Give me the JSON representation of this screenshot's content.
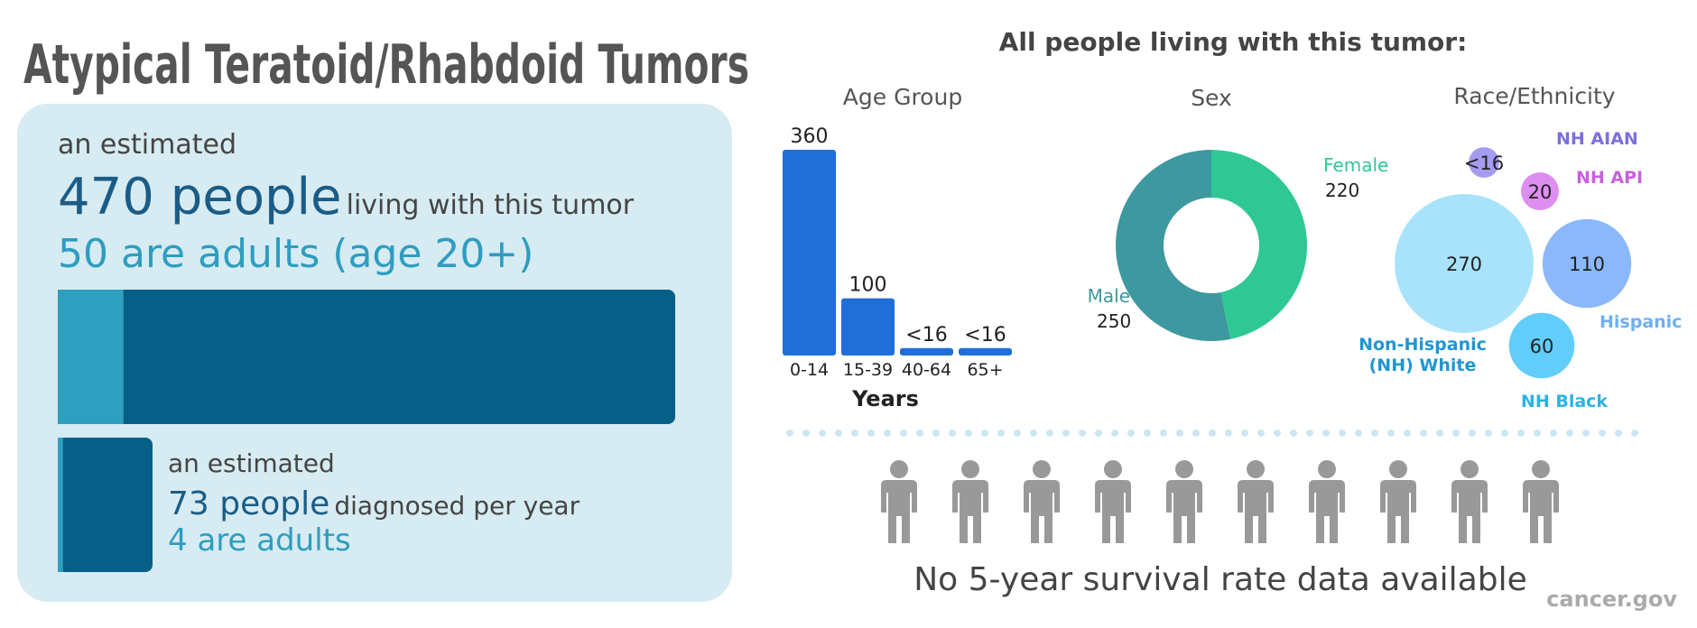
{
  "title": "Atypical Teratoid/Rhabdoid Tumors",
  "prevalence": {
    "lead": "an estimated",
    "count": "470 people",
    "rest": "living with this tumor",
    "adults": "50 are adults (age 20+)",
    "total": 470,
    "adult_total": 50
  },
  "incidence": {
    "lead": "an estimated",
    "count": "73 people",
    "rest": "diagnosed per year",
    "adults": "4 are adults",
    "total": 73,
    "adult_total": 4
  },
  "section_title": "All people living with this tumor:",
  "chart_data": [
    {
      "type": "bar",
      "title": "Age Group",
      "categories": [
        "0-14",
        "15-39",
        "40-64",
        "65+"
      ],
      "values": [
        360,
        100,
        13,
        13
      ],
      "value_labels": [
        "360",
        "100",
        "<16",
        "<16"
      ],
      "xlabel": "Years",
      "color": "#1f6fd6"
    },
    {
      "type": "donut",
      "title": "Sex",
      "categories": [
        "Female",
        "Male"
      ],
      "values": [
        220,
        250
      ],
      "colors": [
        "#2fc895",
        "#3e989f"
      ]
    },
    {
      "type": "bubble",
      "title": "Race/Ethnicity",
      "categories": [
        "NH AIAN",
        "NH API",
        "Non-Hispanic (NH) White",
        "Hispanic",
        "NH Black"
      ],
      "values": [
        13,
        20,
        270,
        110,
        60
      ],
      "value_labels": [
        "<16",
        "20",
        "270",
        "110",
        "60"
      ],
      "colors": [
        "#a49cf0",
        "#de8ef0",
        "#a8e3fb",
        "#8ab8fb",
        "#62cdfa"
      ],
      "label_colors": [
        "#7b6fe0",
        "#c95fe0",
        "#2196cf",
        "#6db0f0",
        "#2ab3e8"
      ]
    }
  ],
  "survival": "No 5-year survival rate data available",
  "source": "cancer.gov"
}
